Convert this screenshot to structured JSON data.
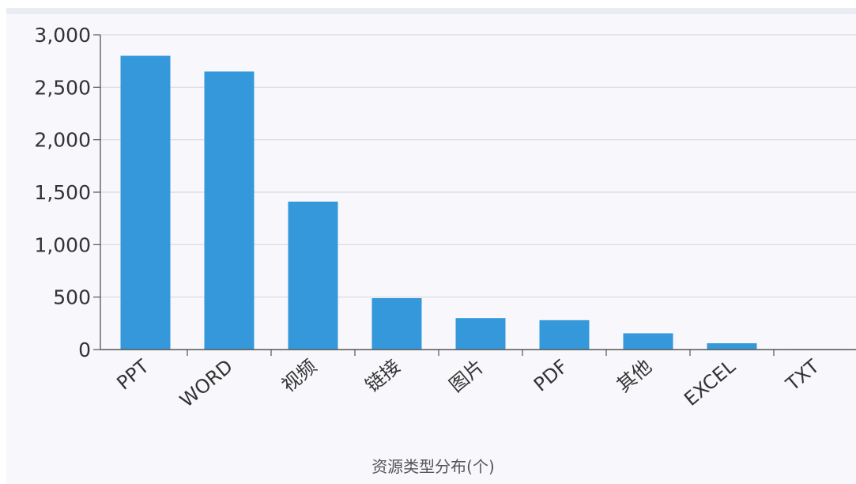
{
  "chart_data": {
    "type": "bar",
    "categories": [
      "PPT",
      "WORD",
      "视频",
      "链接",
      "图片",
      "PDF",
      "其他",
      "EXCEL",
      "TXT"
    ],
    "values": [
      2800,
      2650,
      1410,
      490,
      300,
      280,
      155,
      60,
      5
    ],
    "ylim": [
      0,
      3000
    ],
    "yticks": [
      0,
      500,
      1000,
      1500,
      2000,
      2500,
      3000
    ],
    "ytick_labels": [
      "0",
      "500",
      "1,000",
      "1,500",
      "2,000",
      "2,500",
      "3,000"
    ],
    "xlabel": "资源类型分布(个)",
    "ylabel": "",
    "grid": true,
    "bar_color": "#3498db"
  }
}
